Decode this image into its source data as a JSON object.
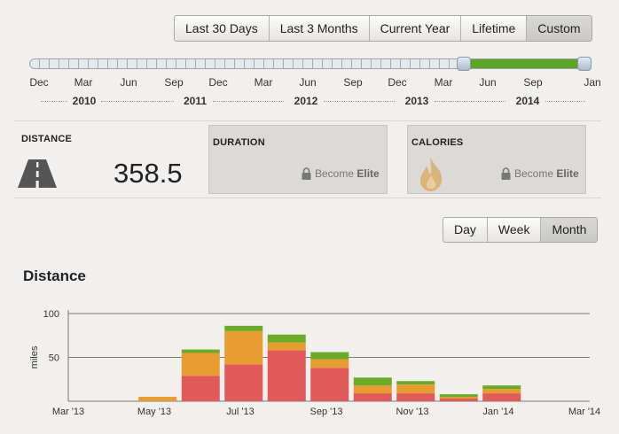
{
  "range_tabs": [
    "Last 30 Days",
    "Last 3 Months",
    "Current Year",
    "Lifetime",
    "Custom"
  ],
  "range_active": 4,
  "timeline": {
    "months": [
      "Dec",
      "Mar",
      "Jun",
      "Sep",
      "Dec",
      "Mar",
      "Jun",
      "Sep",
      "Dec",
      "Mar",
      "Jun",
      "Sep",
      "Jan"
    ],
    "years": [
      "2010",
      "2011",
      "2012",
      "2013",
      "2014"
    ],
    "selection": [
      "Apr 2013",
      "Jan 2014"
    ],
    "colors": {
      "fill": "#5da526"
    }
  },
  "stats": {
    "distance": {
      "title": "DISTANCE",
      "value": "358.5",
      "icon": "road-icon"
    },
    "duration": {
      "title": "DURATION",
      "cta": "Become",
      "cta_strong": "Elite",
      "icon": "lock-icon"
    },
    "calories": {
      "title": "CALORIES",
      "cta": "Become",
      "cta_strong": "Elite",
      "icon": "flame-icon"
    }
  },
  "period_tabs": [
    "Day",
    "Week",
    "Month"
  ],
  "period_active": 2,
  "chart_section_title": "Distance",
  "chart_data": {
    "type": "bar",
    "stacked": true,
    "categories": [
      "Mar '13",
      "Apr '13",
      "May '13",
      "Jun '13",
      "Jul '13",
      "Aug '13",
      "Sep '13",
      "Oct '13",
      "Nov '13",
      "Dec '13",
      "Jan '14",
      "Feb '14",
      "Mar '14"
    ],
    "x_tick_labels": [
      "Mar '13",
      "May '13",
      "Jul '13",
      "Sep '13",
      "Nov '13",
      "Jan '14",
      "Mar '14"
    ],
    "series": [
      {
        "values": [
          0,
          0,
          29,
          42,
          58,
          38,
          9,
          9,
          3,
          9,
          0,
          0,
          0
        ],
        "color": "#e05a5a"
      },
      {
        "values": [
          0,
          5,
          26,
          38,
          9,
          10,
          9,
          10,
          2,
          5,
          0,
          0,
          0
        ],
        "color": "#e69c30"
      },
      {
        "values": [
          0,
          0,
          4,
          6,
          9,
          8,
          9,
          4,
          3,
          4,
          0,
          0,
          0
        ],
        "color": "#6aab2a"
      }
    ],
    "ylabel": "miles",
    "ylim": [
      0,
      100
    ],
    "yticks": [
      50,
      100
    ],
    "grid": true
  }
}
